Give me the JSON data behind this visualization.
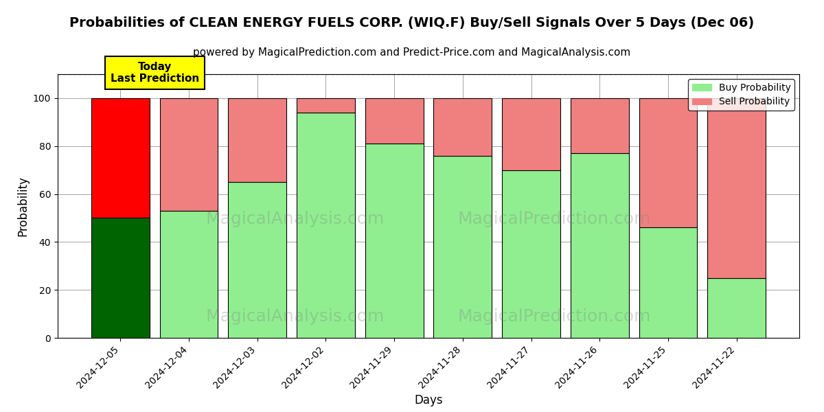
{
  "title": "Probabilities of CLEAN ENERGY FUELS CORP. (WIQ.F) Buy/Sell Signals Over 5 Days (Dec 06)",
  "subtitle": "powered by MagicalPrediction.com and Predict-Price.com and MagicalAnalysis.com",
  "xlabel": "Days",
  "ylabel": "Probability",
  "categories": [
    "2024-12-05",
    "2024-12-04",
    "2024-12-03",
    "2024-12-02",
    "2024-11-29",
    "2024-11-28",
    "2024-11-27",
    "2024-11-26",
    "2024-11-25",
    "2024-11-22"
  ],
  "buy_values": [
    50,
    53,
    65,
    94,
    81,
    76,
    70,
    77,
    46,
    25
  ],
  "sell_values": [
    50,
    47,
    35,
    6,
    19,
    24,
    30,
    23,
    54,
    75
  ],
  "buy_colors": [
    "#006400",
    "#90EE90",
    "#90EE90",
    "#90EE90",
    "#90EE90",
    "#90EE90",
    "#90EE90",
    "#90EE90",
    "#90EE90",
    "#90EE90"
  ],
  "sell_colors": [
    "#FF0000",
    "#F08080",
    "#F08080",
    "#F08080",
    "#F08080",
    "#F08080",
    "#F08080",
    "#F08080",
    "#F08080",
    "#F08080"
  ],
  "today_bar_index": 0,
  "annotation_text": "Today\nLast Prediction",
  "ylim": [
    0,
    110
  ],
  "dashed_line_y": 110,
  "legend_buy_color": "#90EE90",
  "legend_sell_color": "#F08080",
  "legend_buy_label": "Buy Probability",
  "legend_sell_label": "Sell Probability",
  "annotation_bg_color": "#FFFF00",
  "title_fontsize": 14,
  "subtitle_fontsize": 11,
  "axis_label_fontsize": 12,
  "tick_fontsize": 10,
  "bar_width": 0.85
}
